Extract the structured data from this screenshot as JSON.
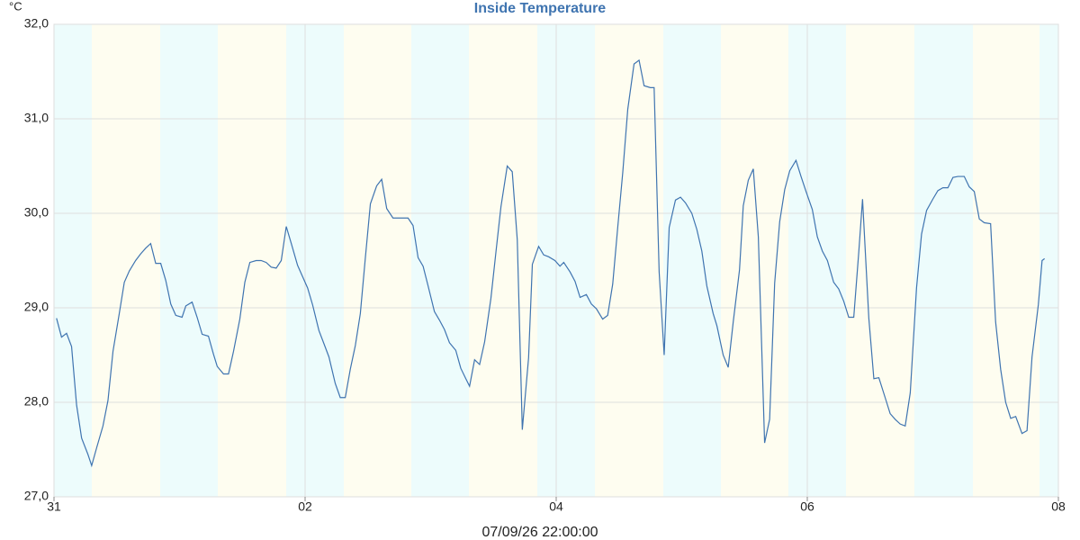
{
  "chart_data": {
    "type": "line",
    "title": "Inside Temperature",
    "y_unit": "°C",
    "x_label": "07/09/26 22:00:00",
    "color": "#3f74b0",
    "grid": true,
    "xlim": [
      0,
      8
    ],
    "xticks": [
      {
        "value": 0,
        "label": "31"
      },
      {
        "value": 2,
        "label": "02"
      },
      {
        "value": 4,
        "label": "04"
      },
      {
        "value": 6,
        "label": "06"
      },
      {
        "value": 8,
        "label": "08"
      }
    ],
    "ylim": [
      27,
      32
    ],
    "yticks": [
      {
        "value": 27,
        "label": "27,0"
      },
      {
        "value": 28,
        "label": "28,0"
      },
      {
        "value": 29,
        "label": "29,0"
      },
      {
        "value": 30,
        "label": "30,0"
      },
      {
        "value": 31,
        "label": "31,0"
      },
      {
        "value": 32,
        "label": "32,0"
      }
    ],
    "x": [
      0.02,
      0.06,
      0.1,
      0.14,
      0.18,
      0.22,
      0.27,
      0.3,
      0.34,
      0.39,
      0.43,
      0.47,
      0.52,
      0.56,
      0.6,
      0.65,
      0.69,
      0.73,
      0.77,
      0.81,
      0.85,
      0.89,
      0.93,
      0.97,
      1.02,
      1.05,
      1.1,
      1.14,
      1.18,
      1.23,
      1.27,
      1.3,
      1.35,
      1.39,
      1.43,
      1.48,
      1.52,
      1.56,
      1.61,
      1.65,
      1.69,
      1.73,
      1.77,
      1.81,
      1.85,
      1.89,
      1.94,
      1.98,
      2.02,
      2.06,
      2.11,
      2.15,
      2.19,
      2.24,
      2.28,
      2.32,
      2.36,
      2.4,
      2.44,
      2.48,
      2.52,
      2.57,
      2.61,
      2.65,
      2.7,
      2.74,
      2.78,
      2.82,
      2.86,
      2.9,
      2.94,
      2.98,
      3.03,
      3.07,
      3.11,
      3.15,
      3.2,
      3.24,
      3.28,
      3.31,
      3.35,
      3.39,
      3.43,
      3.48,
      3.52,
      3.56,
      3.61,
      3.65,
      3.69,
      3.73,
      3.78,
      3.81,
      3.86,
      3.9,
      3.94,
      3.99,
      4.03,
      4.06,
      4.11,
      4.15,
      4.19,
      4.24,
      4.28,
      4.32,
      4.37,
      4.41,
      4.45,
      4.49,
      4.53,
      4.57,
      4.62,
      4.66,
      4.7,
      4.75,
      4.78,
      4.82,
      4.86,
      4.9,
      4.95,
      4.99,
      5.03,
      5.08,
      5.12,
      5.16,
      5.2,
      5.25,
      5.28,
      5.33,
      5.37,
      5.41,
      5.46,
      5.49,
      5.53,
      5.57,
      5.61,
      5.66,
      5.7,
      5.74,
      5.78,
      5.82,
      5.86,
      5.91,
      5.95,
      5.99,
      6.04,
      6.08,
      6.12,
      6.16,
      6.21,
      6.25,
      6.29,
      6.33,
      6.37,
      6.41,
      6.44,
      6.49,
      6.53,
      6.57,
      6.62,
      6.66,
      6.7,
      6.74,
      6.78,
      6.82,
      6.87,
      6.91,
      6.95,
      7.0,
      7.04,
      7.08,
      7.12,
      7.16,
      7.2,
      7.25,
      7.29,
      7.33,
      7.37,
      7.41,
      7.46,
      7.5,
      7.54,
      7.58,
      7.62,
      7.66,
      7.71,
      7.75,
      7.79,
      7.84,
      7.87,
      7.89
    ],
    "values": [
      28.89,
      28.69,
      28.73,
      28.59,
      27.97,
      27.62,
      27.45,
      27.33,
      27.52,
      27.75,
      28.02,
      28.54,
      28.94,
      29.27,
      29.39,
      29.5,
      29.57,
      29.63,
      29.68,
      29.47,
      29.47,
      29.29,
      29.04,
      28.92,
      28.9,
      29.02,
      29.06,
      28.9,
      28.72,
      28.7,
      28.51,
      28.38,
      28.3,
      28.3,
      28.54,
      28.88,
      29.27,
      29.48,
      29.5,
      29.5,
      29.48,
      29.43,
      29.42,
      29.5,
      29.86,
      29.68,
      29.45,
      29.33,
      29.21,
      29.03,
      28.76,
      28.62,
      28.48,
      28.2,
      28.05,
      28.05,
      28.35,
      28.6,
      28.94,
      29.53,
      30.1,
      30.29,
      30.36,
      30.05,
      29.95,
      29.95,
      29.95,
      29.95,
      29.87,
      29.53,
      29.44,
      29.23,
      28.96,
      28.87,
      28.77,
      28.63,
      28.55,
      28.36,
      28.25,
      28.17,
      28.45,
      28.4,
      28.64,
      29.1,
      29.59,
      30.07,
      30.5,
      30.44,
      29.72,
      27.71,
      28.47,
      29.46,
      29.65,
      29.56,
      29.54,
      29.5,
      29.44,
      29.48,
      29.38,
      29.28,
      29.11,
      29.14,
      29.04,
      28.99,
      28.88,
      28.92,
      29.25,
      29.85,
      30.43,
      31.1,
      31.58,
      31.62,
      31.35,
      31.33,
      31.33,
      29.38,
      28.5,
      29.85,
      30.14,
      30.17,
      30.11,
      30.0,
      29.83,
      29.6,
      29.23,
      28.94,
      28.81,
      28.5,
      28.37,
      28.85,
      29.4,
      30.08,
      30.35,
      30.47,
      29.75,
      27.57,
      27.82,
      29.26,
      29.91,
      30.25,
      30.45,
      30.56,
      30.39,
      30.23,
      30.04,
      29.75,
      29.6,
      29.5,
      29.27,
      29.2,
      29.07,
      28.9,
      28.9,
      29.59,
      30.15,
      28.89,
      28.25,
      28.26,
      28.05,
      27.88,
      27.82,
      27.77,
      27.75,
      28.1,
      29.21,
      29.78,
      30.03,
      30.15,
      30.24,
      30.27,
      30.27,
      30.38,
      30.39,
      30.39,
      30.28,
      30.23,
      29.94,
      29.9,
      29.89,
      28.85,
      28.35,
      28.0,
      27.83,
      27.85,
      27.67,
      27.7,
      28.48,
      29.03,
      29.5,
      29.52
    ]
  }
}
